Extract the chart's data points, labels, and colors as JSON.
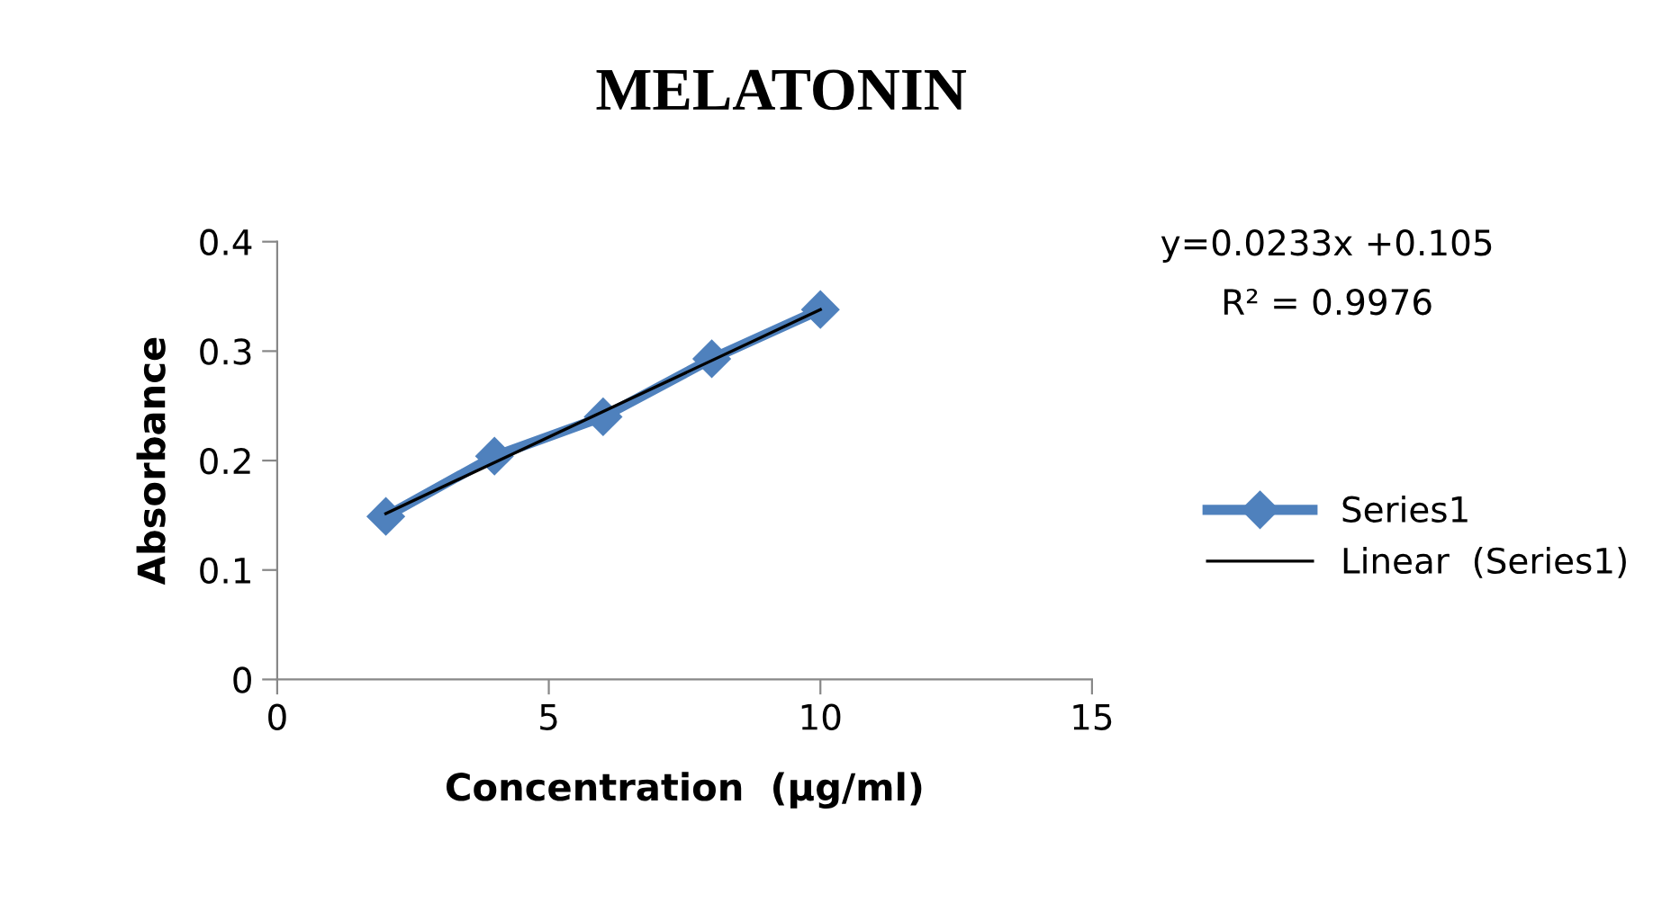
{
  "chart_data": {
    "type": "line",
    "title": "MELATONIN",
    "xlabel": "Concentration  (µg/ml)",
    "ylabel": "Absorbance",
    "series": [
      {
        "name": "Series1",
        "color": "#4f81bd",
        "x": [
          2,
          4,
          6,
          8,
          10
        ],
        "values": [
          0.149,
          0.204,
          0.24,
          0.293,
          0.338
        ],
        "marker": "diamond"
      },
      {
        "name": "Linear  (Series1)",
        "color": "#000000",
        "x": [
          2,
          10
        ],
        "values": [
          0.1516,
          0.338
        ],
        "marker": "none"
      }
    ],
    "xlim": [
      0,
      15
    ],
    "xticks": [
      0,
      5,
      10,
      15
    ],
    "ylim": [
      0,
      0.4
    ],
    "yticks": [
      0,
      0.1,
      0.2,
      0.3,
      0.4
    ],
    "annotations": [
      "y=0.0233x +0.105",
      "R² = 0.9976"
    ],
    "legend": "right",
    "grid": false
  }
}
